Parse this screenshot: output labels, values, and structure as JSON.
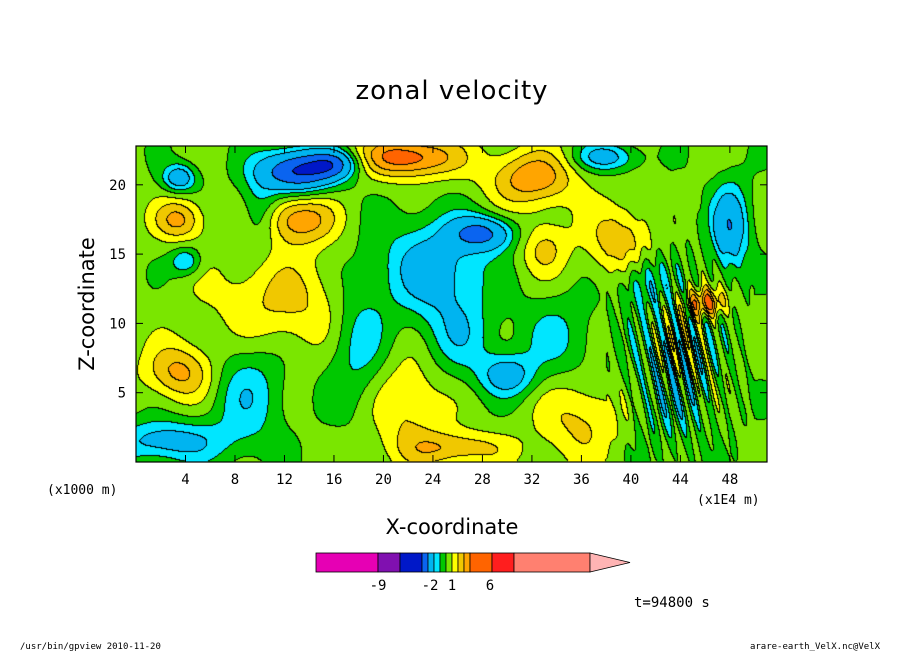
{
  "chart_data": {
    "type": "heatmap",
    "title": "zonal velocity",
    "xlabel": "X-coordinate",
    "ylabel": "Z-coordinate",
    "x_ticks": [
      "4",
      "8",
      "12",
      "16",
      "20",
      "24",
      "28",
      "32",
      "36",
      "40",
      "44",
      "48"
    ],
    "y_ticks": [
      "5",
      "10",
      "15",
      "20"
    ],
    "x_range": [
      0,
      51
    ],
    "y_range": [
      0,
      22.8
    ],
    "x_unit": "(x1000 m)",
    "x_scale": "(x1E4 m)",
    "time_label": "t=94800 s",
    "colorbar": {
      "labels": [
        "-9",
        "-2",
        "1",
        "6"
      ],
      "colors": [
        "#e600b4",
        "#8010b0",
        "#0018c8",
        "#0a64f0",
        "#00b4f0",
        "#00e6ff",
        "#00c800",
        "#7ae600",
        "#ffff00",
        "#f0c800",
        "#ffa500",
        "#ff6400",
        "#ff1e1e",
        "#ff8070",
        "#ffb4b4"
      ]
    },
    "levels": [
      -12,
      -9,
      -6,
      -4,
      -2,
      -1,
      0,
      1,
      2,
      3,
      4,
      6,
      9,
      12
    ],
    "field": {
      "description_free": true,
      "components": [
        {
          "x": 24,
          "y": 14,
          "amp": -3.2,
          "sx": 4.0,
          "sy": 3.5
        },
        {
          "x": 28,
          "y": 16.5,
          "amp": -4.5,
          "sx": 2.5,
          "sy": 1.2
        },
        {
          "x": 13,
          "y": 21,
          "amp": -6.5,
          "sx": 3.0,
          "sy": 1.5
        },
        {
          "x": 16,
          "y": 21.5,
          "amp": -4.0,
          "sx": 2.0,
          "sy": 1.0
        },
        {
          "x": 3.5,
          "y": 20.5,
          "amp": -3.5,
          "sx": 1.3,
          "sy": 1.0
        },
        {
          "x": 2.5,
          "y": 1.5,
          "amp": -3.0,
          "sx": 4.5,
          "sy": 1.5
        },
        {
          "x": 30,
          "y": 6.3,
          "amp": -3.0,
          "sx": 2.2,
          "sy": 1.5
        },
        {
          "x": 4,
          "y": 14.5,
          "amp": -2.5,
          "sx": 1.2,
          "sy": 1.0
        },
        {
          "x": 41,
          "y": 13,
          "amp": -2.0,
          "sx": 2.0,
          "sy": 2.0
        },
        {
          "x": 48,
          "y": 17,
          "amp": -4.0,
          "sx": 1.5,
          "sy": 3.0
        },
        {
          "x": 38,
          "y": 22,
          "amp": -3.0,
          "sx": 2.5,
          "sy": 1.0
        },
        {
          "x": 10,
          "y": 18,
          "amp": -2.0,
          "sx": 1.5,
          "sy": 2.5
        },
        {
          "x": 22,
          "y": 22,
          "amp": 4.5,
          "sx": 4.0,
          "sy": 1.5
        },
        {
          "x": 32,
          "y": 20.5,
          "amp": 3.5,
          "sx": 3.5,
          "sy": 2.0
        },
        {
          "x": 13,
          "y": 17.5,
          "amp": 3.5,
          "sx": 3.0,
          "sy": 1.8
        },
        {
          "x": 3.5,
          "y": 17.5,
          "amp": 3.0,
          "sx": 2.0,
          "sy": 1.5
        },
        {
          "x": 3.5,
          "y": 6.5,
          "amp": 3.0,
          "sx": 2.8,
          "sy": 2.0
        },
        {
          "x": 12,
          "y": 11.5,
          "amp": 2.0,
          "sx": 6.0,
          "sy": 3.5
        },
        {
          "x": 39,
          "y": 16,
          "amp": 2.5,
          "sx": 2.5,
          "sy": 2.5
        },
        {
          "x": 46,
          "y": 11.5,
          "amp": 4.0,
          "sx": 1.5,
          "sy": 1.0
        },
        {
          "x": 33,
          "y": 15.5,
          "amp": 2.0,
          "sx": 2.0,
          "sy": 2.0
        },
        {
          "x": 26,
          "y": 1.0,
          "amp": 2.5,
          "sx": 4.0,
          "sy": 1.2
        },
        {
          "x": 22,
          "y": 4.0,
          "amp": 2.0,
          "sx": 3.0,
          "sy": 4.0
        },
        {
          "x": 36,
          "y": 3.0,
          "amp": 2.0,
          "sx": 3.5,
          "sy": 3.0
        },
        {
          "x": 9,
          "y": 5.0,
          "amp": -2.0,
          "sx": 3.0,
          "sy": 4.0
        },
        {
          "x": 18,
          "y": 9.0,
          "amp": -2.0,
          "sx": 2.5,
          "sy": 5.0
        },
        {
          "x": 26,
          "y": 9.0,
          "amp": -1.8,
          "sx": 3.0,
          "sy": 3.0
        },
        {
          "x": 34,
          "y": 9.0,
          "amp": -1.5,
          "sx": 3.0,
          "sy": 3.0
        },
        {
          "x": 43,
          "y": 5.0,
          "amp": -1.2,
          "sx": 4.0,
          "sy": 5.0
        }
      ]
    }
  },
  "footer": {
    "left": "/usr/bin/gpview  2010-11-20",
    "right": "arare-earth_VelX.nc@VelX"
  }
}
